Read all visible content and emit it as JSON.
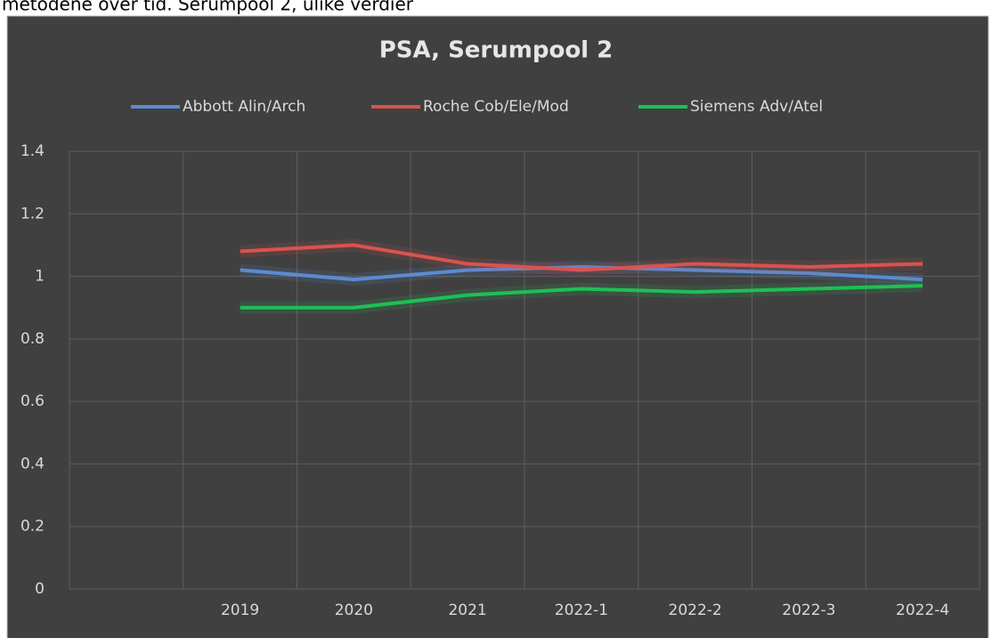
{
  "caption": "metodene over tid. Serumpool 2, ulike verdier",
  "chart_data": {
    "type": "line",
    "title": "PSA, Serumpool  2",
    "categories": [
      null,
      "2019",
      "2020",
      "2021",
      "2022-1",
      "2022-2",
      "2022-3",
      "2022-4"
    ],
    "series": [
      {
        "name": "Abbott Alin/Arch",
        "color": "#5b8bd0",
        "values": [
          null,
          1.02,
          0.99,
          1.02,
          1.03,
          1.02,
          1.01,
          0.99
        ]
      },
      {
        "name": "Roche Cob/Ele/Mod",
        "color": "#d9534f",
        "values": [
          null,
          1.08,
          1.1,
          1.04,
          1.02,
          1.04,
          1.03,
          1.04
        ]
      },
      {
        "name": "Siemens Adv/Atel",
        "color": "#1fbf55",
        "values": [
          null,
          0.9,
          0.9,
          0.94,
          0.96,
          0.95,
          0.96,
          0.97
        ]
      }
    ],
    "ylim": [
      0,
      1.4
    ],
    "yticks": [
      0,
      0.2,
      0.4,
      0.6,
      0.8,
      1,
      1.2,
      1.4
    ],
    "grid": true,
    "legend": "top"
  }
}
